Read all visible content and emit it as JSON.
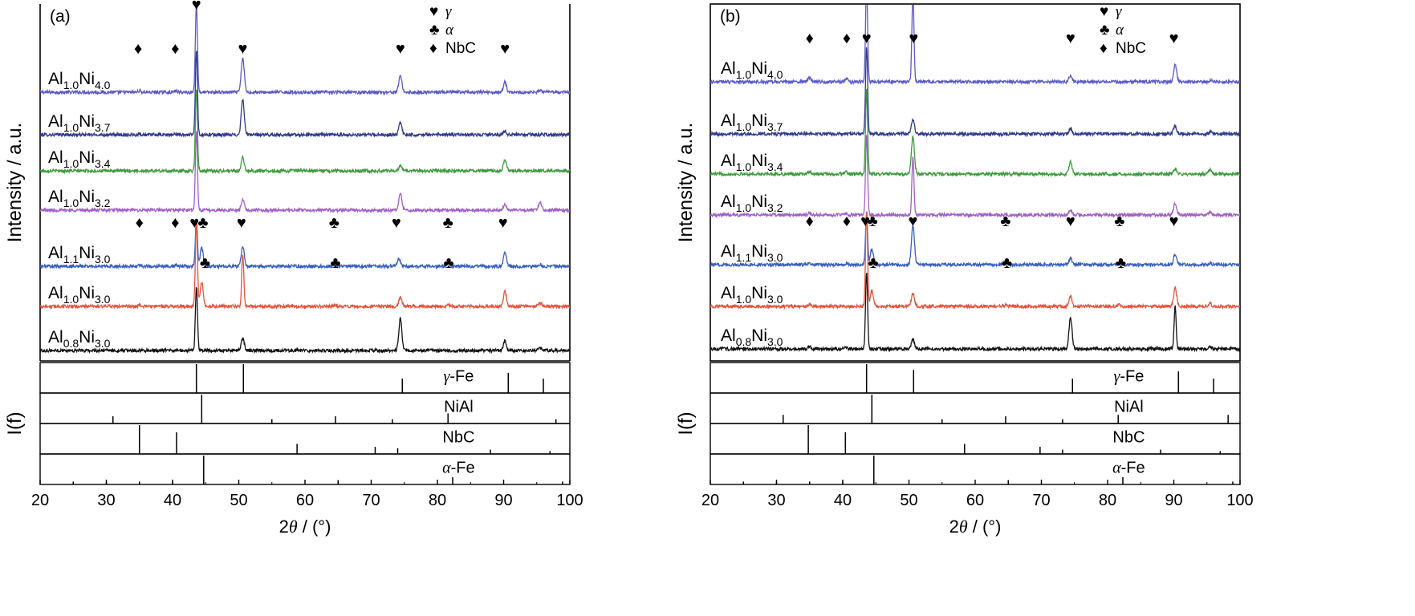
{
  "chart_data": [
    {
      "type": "line",
      "panel_label": "(a)",
      "ylabel": "Intensity / a.u.",
      "ref_ylabel": "I(f)",
      "xlabel_symbol": "2θ",
      "xlabel_unit": " / (°)",
      "xlim": [
        20,
        100
      ],
      "xticks": [
        20,
        30,
        40,
        50,
        60,
        70,
        80,
        90,
        100
      ],
      "legend": [
        {
          "symbol": "♥",
          "label": "γ"
        },
        {
          "symbol": "♣",
          "label": "α"
        },
        {
          "symbol": "♦",
          "label": "NbC"
        }
      ],
      "series": [
        {
          "name": "Al1.0Ni4.0",
          "label_main": "Al",
          "sub1": "1.0",
          "mid": "Ni",
          "sub2": "4.0",
          "color": "#5a5ac8",
          "peaks": [
            [
              35.0,
              0.06
            ],
            [
              40.5,
              0.04
            ],
            [
              43.6,
              3.4
            ],
            [
              50.6,
              1.3
            ],
            [
              74.4,
              0.65
            ],
            [
              90.2,
              0.38
            ],
            [
              95.5,
              0.05
            ]
          ]
        },
        {
          "name": "Al1.0Ni3.7",
          "label_main": "Al",
          "sub1": "1.0",
          "mid": "Ni",
          "sub2": "3.7",
          "color": "#2e3a8c",
          "peaks": [
            [
              35.0,
              0.04
            ],
            [
              40.5,
              0.03
            ],
            [
              43.6,
              3.2
            ],
            [
              50.6,
              1.35
            ],
            [
              74.4,
              0.45
            ],
            [
              90.2,
              0.15
            ]
          ]
        },
        {
          "name": "Al1.0Ni3.4",
          "label_main": "Al",
          "sub1": "1.0",
          "mid": "Ni",
          "sub2": "3.4",
          "color": "#3f9a3f",
          "peaks": [
            [
              43.6,
              3.1
            ],
            [
              50.6,
              0.5
            ],
            [
              74.4,
              0.2
            ],
            [
              90.2,
              0.45
            ]
          ]
        },
        {
          "name": "Al1.0Ni3.2",
          "label_main": "Al",
          "sub1": "1.0",
          "mid": "Ni",
          "sub2": "3.2",
          "color": "#a05fc8",
          "peaks": [
            [
              43.6,
              3.0
            ],
            [
              50.6,
              0.4
            ],
            [
              74.4,
              0.6
            ],
            [
              90.2,
              0.25
            ],
            [
              95.5,
              0.3
            ]
          ]
        },
        {
          "name": "Al1.1Ni3.0",
          "label_main": "Al",
          "sub1": "1.1",
          "mid": "Ni",
          "sub2": "3.0",
          "color": "#3a5fbf",
          "peaks": [
            [
              35.0,
              0.05
            ],
            [
              40.5,
              0.04
            ],
            [
              43.6,
              1.8
            ],
            [
              44.4,
              0.7
            ],
            [
              50.6,
              0.75
            ],
            [
              64.6,
              0.06
            ],
            [
              74.2,
              0.3
            ],
            [
              81.7,
              0.12
            ],
            [
              90.2,
              0.55
            ],
            [
              95.5,
              0.05
            ]
          ]
        },
        {
          "name": "Al1.0Ni3.0",
          "label_main": "Al",
          "sub1": "1.0",
          "mid": "Ni",
          "sub2": "3.0",
          "color": "#e5533c",
          "peaks": [
            [
              35.0,
              0.04
            ],
            [
              43.6,
              3.2
            ],
            [
              44.4,
              0.9
            ],
            [
              50.6,
              2.0
            ],
            [
              64.6,
              0.04
            ],
            [
              74.4,
              0.35
            ],
            [
              81.7,
              0.05
            ],
            [
              90.2,
              0.55
            ],
            [
              95.5,
              0.15
            ]
          ]
        },
        {
          "name": "Al0.8Ni3.0",
          "label_main": "Al",
          "sub1": "0.8",
          "mid": "Ni",
          "sub2": "3.0",
          "color": "#111111",
          "peaks": [
            [
              43.6,
              2.4
            ],
            [
              50.6,
              0.45
            ],
            [
              74.4,
              1.2
            ],
            [
              90.2,
              0.35
            ],
            [
              95.5,
              0.1
            ]
          ]
        }
      ],
      "markers": [
        {
          "symbol": "♥",
          "x": 43.6,
          "row": 0
        },
        {
          "symbol": "♥",
          "x": 50.6,
          "row": 0
        },
        {
          "symbol": "♥",
          "x": 74.4,
          "row": 0
        },
        {
          "symbol": "♥",
          "x": 90.2,
          "row": 0
        },
        {
          "symbol": "♦",
          "x": 34.8,
          "row": 0
        },
        {
          "symbol": "♦",
          "x": 40.4,
          "row": 0
        },
        {
          "symbol": "♥",
          "x": 43.3,
          "row": 4
        },
        {
          "symbol": "♣",
          "x": 44.6,
          "row": 4
        },
        {
          "symbol": "♥",
          "x": 50.4,
          "row": 4
        },
        {
          "symbol": "♥",
          "x": 73.8,
          "row": 4
        },
        {
          "symbol": "♥",
          "x": 89.9,
          "row": 4
        },
        {
          "symbol": "♦",
          "x": 35.0,
          "row": 4
        },
        {
          "symbol": "♦",
          "x": 40.4,
          "row": 4
        },
        {
          "symbol": "♣",
          "x": 64.4,
          "row": 4
        },
        {
          "symbol": "♣",
          "x": 81.6,
          "row": 4
        },
        {
          "symbol": "♣",
          "x": 44.9,
          "row": 5
        },
        {
          "symbol": "♣",
          "x": 64.6,
          "row": 5
        },
        {
          "symbol": "♣",
          "x": 81.7,
          "row": 5
        }
      ],
      "references": [
        {
          "name": "γ-Fe",
          "greek": "γ",
          "suffix": "-Fe",
          "lines": [
            [
              43.6,
              1.0
            ],
            [
              50.7,
              1.0
            ],
            [
              74.7,
              0.5
            ],
            [
              90.7,
              0.7
            ],
            [
              96.0,
              0.5
            ]
          ]
        },
        {
          "name": "NiAl",
          "greek": "",
          "suffix": "NiAl",
          "lines": [
            [
              31.0,
              0.25
            ],
            [
              44.4,
              1.0
            ],
            [
              55.0,
              0.15
            ],
            [
              64.6,
              0.25
            ],
            [
              73.2,
              0.15
            ],
            [
              81.6,
              0.35
            ],
            [
              97.9,
              0.15
            ]
          ]
        },
        {
          "name": "NbC",
          "greek": "",
          "suffix": "NbC",
          "lines": [
            [
              35.0,
              1.0
            ],
            [
              40.6,
              0.75
            ],
            [
              58.8,
              0.35
            ],
            [
              70.6,
              0.25
            ],
            [
              74.0,
              0.2
            ],
            [
              88.0,
              0.15
            ],
            [
              97.0,
              0.1
            ]
          ]
        },
        {
          "name": "α-Fe",
          "greek": "α",
          "suffix": "-Fe",
          "lines": [
            [
              25.0,
              0.1
            ],
            [
              30.0,
              0.1
            ],
            [
              35.0,
              0.1
            ],
            [
              40.0,
              0.1
            ],
            [
              44.7,
              1.0
            ],
            [
              65.0,
              0.15
            ],
            [
              82.3,
              0.25
            ],
            [
              98.9,
              0.1
            ]
          ]
        }
      ]
    },
    {
      "type": "line",
      "panel_label": "(b)",
      "ylabel": "Intensity / a.u.",
      "ref_ylabel": "I(f)",
      "xlabel_symbol": "2θ",
      "xlabel_unit": " / (°)",
      "xlim": [
        20,
        100
      ],
      "xticks": [
        20,
        30,
        40,
        50,
        60,
        70,
        80,
        90,
        100
      ],
      "legend": [
        {
          "symbol": "♥",
          "label": "γ"
        },
        {
          "symbol": "♣",
          "label": "α"
        },
        {
          "symbol": "♦",
          "label": "NbC"
        }
      ],
      "series": [
        {
          "name": "Al1.0Ni4.0",
          "label_main": "Al",
          "sub1": "1.0",
          "mid": "Ni",
          "sub2": "4.0",
          "color": "#5a5ac8",
          "peaks": [
            [
              35.0,
              0.15
            ],
            [
              40.5,
              0.12
            ],
            [
              43.6,
              3.6
            ],
            [
              50.6,
              3.4
            ],
            [
              74.4,
              0.25
            ],
            [
              90.2,
              0.65
            ],
            [
              95.5,
              0.05
            ]
          ]
        },
        {
          "name": "Al1.0Ni3.7",
          "label_main": "Al",
          "sub1": "1.0",
          "mid": "Ni",
          "sub2": "3.7",
          "color": "#2e3a8c",
          "peaks": [
            [
              35.5,
              0.05
            ],
            [
              43.6,
              3.3
            ],
            [
              50.6,
              0.55
            ],
            [
              74.4,
              0.2
            ],
            [
              90.2,
              0.3
            ],
            [
              95.5,
              0.08
            ]
          ]
        },
        {
          "name": "Al1.0Ni3.4",
          "label_main": "Al",
          "sub1": "1.0",
          "mid": "Ni",
          "sub2": "3.4",
          "color": "#3f9a3f",
          "peaks": [
            [
              35.0,
              0.1
            ],
            [
              40.5,
              0.08
            ],
            [
              43.6,
              3.2
            ],
            [
              50.6,
              1.4
            ],
            [
              74.4,
              0.45
            ],
            [
              90.2,
              0.2
            ],
            [
              95.5,
              0.15
            ]
          ]
        },
        {
          "name": "Al1.0Ni3.2",
          "label_main": "Al",
          "sub1": "1.0",
          "mid": "Ni",
          "sub2": "3.2",
          "color": "#a05fc8",
          "peaks": [
            [
              35.0,
              0.06
            ],
            [
              40.5,
              0.05
            ],
            [
              43.6,
              3.0
            ],
            [
              50.6,
              2.2
            ],
            [
              74.4,
              0.2
            ],
            [
              90.2,
              0.45
            ],
            [
              95.5,
              0.08
            ]
          ]
        },
        {
          "name": "Al1.1Ni3.0",
          "label_main": "Al",
          "sub1": "1.1",
          "mid": "Ni",
          "sub2": "3.0",
          "color": "#3a5fbf",
          "peaks": [
            [
              35.0,
              0.05
            ],
            [
              40.5,
              0.04
            ],
            [
              43.6,
              2.0
            ],
            [
              44.4,
              0.6
            ],
            [
              50.6,
              1.5
            ],
            [
              64.6,
              0.15
            ],
            [
              74.4,
              0.25
            ],
            [
              81.7,
              0.08
            ],
            [
              90.2,
              0.4
            ],
            [
              95.5,
              0.05
            ]
          ]
        },
        {
          "name": "Al1.0Ni3.0",
          "label_main": "Al",
          "sub1": "1.0",
          "mid": "Ni",
          "sub2": "3.0",
          "color": "#e5533c",
          "peaks": [
            [
              35.0,
              0.08
            ],
            [
              43.6,
              3.6
            ],
            [
              44.4,
              0.6
            ],
            [
              50.6,
              0.5
            ],
            [
              64.6,
              0.05
            ],
            [
              74.4,
              0.4
            ],
            [
              81.7,
              0.08
            ],
            [
              90.2,
              0.7
            ],
            [
              95.5,
              0.1
            ]
          ]
        },
        {
          "name": "Al0.8Ni3.0",
          "label_main": "Al",
          "sub1": "0.8",
          "mid": "Ni",
          "sub2": "3.0",
          "color": "#111111",
          "peaks": [
            [
              35.0,
              0.1
            ],
            [
              40.5,
              0.05
            ],
            [
              43.6,
              2.9
            ],
            [
              50.6,
              0.35
            ],
            [
              74.4,
              1.2
            ],
            [
              90.2,
              1.6
            ],
            [
              95.5,
              0.08
            ]
          ]
        }
      ],
      "markers": [
        {
          "symbol": "♥",
          "x": 43.6,
          "row": 0
        },
        {
          "symbol": "♥",
          "x": 50.7,
          "row": 0
        },
        {
          "symbol": "♥",
          "x": 74.4,
          "row": 0
        },
        {
          "symbol": "♥",
          "x": 90.0,
          "row": 0
        },
        {
          "symbol": "♦",
          "x": 35.0,
          "row": 0
        },
        {
          "symbol": "♦",
          "x": 40.6,
          "row": 0
        },
        {
          "symbol": "♥",
          "x": 43.4,
          "row": 4
        },
        {
          "symbol": "♣",
          "x": 44.5,
          "row": 4
        },
        {
          "symbol": "♥",
          "x": 50.6,
          "row": 4
        },
        {
          "symbol": "♥",
          "x": 74.4,
          "row": 4
        },
        {
          "symbol": "♥",
          "x": 90.0,
          "row": 4
        },
        {
          "symbol": "♦",
          "x": 35.0,
          "row": 4
        },
        {
          "symbol": "♦",
          "x": 40.6,
          "row": 4
        },
        {
          "symbol": "♣",
          "x": 64.6,
          "row": 4
        },
        {
          "symbol": "♣",
          "x": 81.8,
          "row": 4
        },
        {
          "symbol": "♣",
          "x": 44.6,
          "row": 5
        },
        {
          "symbol": "♣",
          "x": 64.8,
          "row": 5
        },
        {
          "symbol": "♣",
          "x": 82.0,
          "row": 5
        }
      ],
      "references": [
        {
          "name": "γ-Fe",
          "greek": "γ",
          "suffix": "-Fe",
          "lines": [
            [
              43.6,
              1.0
            ],
            [
              50.7,
              0.8
            ],
            [
              74.7,
              0.5
            ],
            [
              90.7,
              0.75
            ],
            [
              96.0,
              0.5
            ]
          ]
        },
        {
          "name": "NiAl",
          "greek": "",
          "suffix": "NiAl",
          "lines": [
            [
              31.0,
              0.3
            ],
            [
              44.4,
              1.0
            ],
            [
              55.0,
              0.15
            ],
            [
              64.6,
              0.25
            ],
            [
              73.2,
              0.15
            ],
            [
              81.6,
              0.3
            ],
            [
              98.2,
              0.3
            ]
          ]
        },
        {
          "name": "NbC",
          "greek": "",
          "suffix": "NbC",
          "lines": [
            [
              34.8,
              1.0
            ],
            [
              40.4,
              0.75
            ],
            [
              58.4,
              0.35
            ],
            [
              69.8,
              0.25
            ],
            [
              73.2,
              0.15
            ],
            [
              88.0,
              0.15
            ],
            [
              97.0,
              0.1
            ]
          ]
        },
        {
          "name": "α-Fe",
          "greek": "α",
          "suffix": "-Fe",
          "lines": [
            [
              25.0,
              0.1
            ],
            [
              30.0,
              0.1
            ],
            [
              35.0,
              0.1
            ],
            [
              40.0,
              0.1
            ],
            [
              44.7,
              1.0
            ],
            [
              65.0,
              0.15
            ],
            [
              82.3,
              0.25
            ],
            [
              98.9,
              0.1
            ]
          ]
        }
      ]
    }
  ]
}
